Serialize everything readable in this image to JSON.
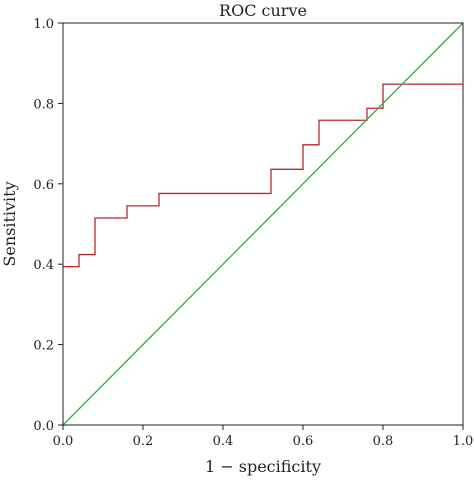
{
  "chart_data": {
    "type": "line",
    "title": "ROC curve",
    "xlabel": "1 − specificity",
    "ylabel": "Sensitivity",
    "xlim": [
      0,
      1
    ],
    "ylim": [
      0,
      1
    ],
    "xticks": [
      "0.0",
      "0.2",
      "0.4",
      "0.6",
      "0.8",
      "1.0"
    ],
    "yticks": [
      "0.0",
      "0.2",
      "0.4",
      "0.6",
      "0.8",
      "1.0"
    ],
    "grid": false,
    "series": [
      {
        "style": "step",
        "color": "#b5292e",
        "x": [
          0.0,
          0.04,
          0.04,
          0.08,
          0.08,
          0.16,
          0.16,
          0.24,
          0.24,
          0.52,
          0.52,
          0.6,
          0.6,
          0.64,
          0.64,
          0.76,
          0.76,
          0.8,
          0.8,
          1.0
        ],
        "y": [
          0.394,
          0.394,
          0.424,
          0.424,
          0.515,
          0.515,
          0.545,
          0.545,
          0.576,
          0.576,
          0.636,
          0.636,
          0.697,
          0.697,
          0.758,
          0.758,
          0.788,
          0.788,
          0.848,
          0.848
        ]
      },
      {
        "style": "line",
        "color": "#22b24c",
        "x": [
          0,
          1
        ],
        "y": [
          0,
          1
        ]
      }
    ]
  }
}
